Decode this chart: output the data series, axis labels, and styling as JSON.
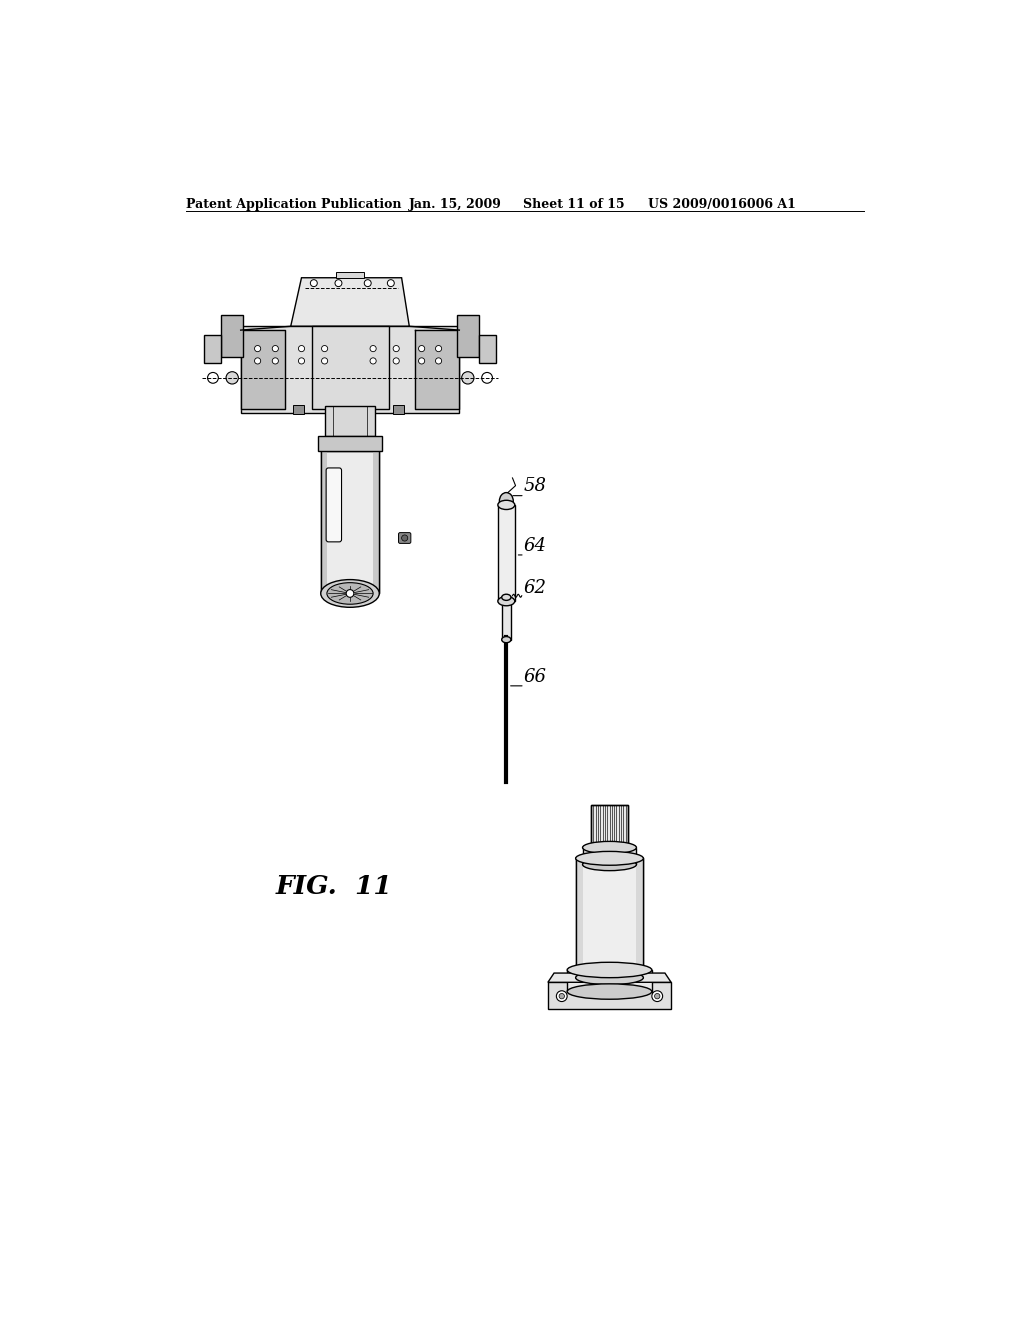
{
  "background_color": "#ffffff",
  "header_text": "Patent Application Publication",
  "header_date": "Jan. 15, 2009",
  "header_sheet": "Sheet 11 of 15",
  "header_patent": "US 2009/0016006 A1",
  "fig_label": "FIG.  11",
  "label_58": "58",
  "label_62": "62",
  "label_64": "64",
  "label_66": "66",
  "line_color": "#000000",
  "fill_light": "#f0f0f0",
  "fill_mid": "#d8d8d8",
  "fill_dark": "#a0a0a0"
}
